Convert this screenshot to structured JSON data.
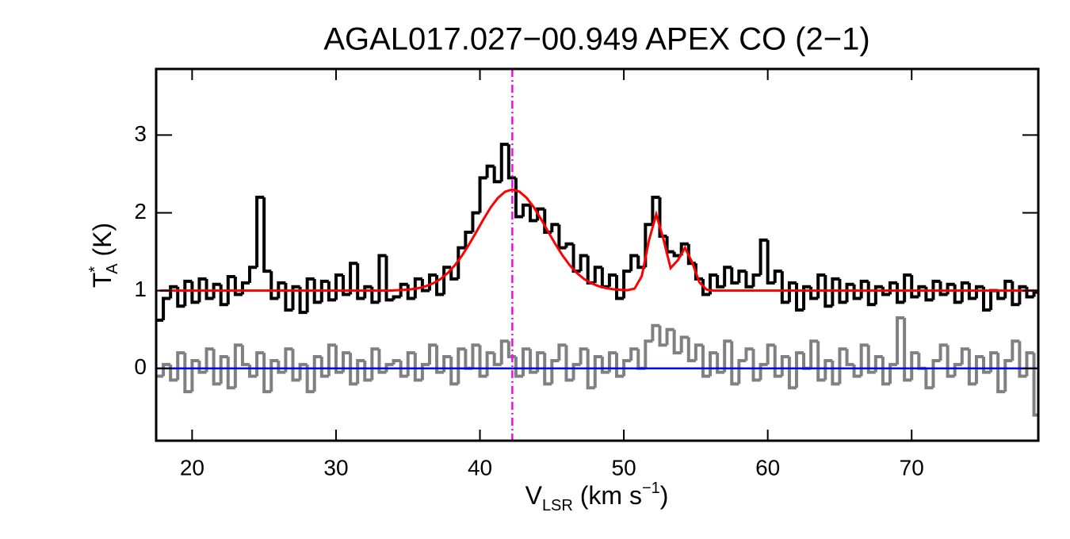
{
  "chart_data": {
    "type": "spectrum",
    "title": "AGAL017.027−00.949  APEX CO (2−1)",
    "xlabel": {
      "main": "V",
      "sub": "LSR",
      "rest": " (km s",
      "sup": "−1",
      "end": ")"
    },
    "ylabel": {
      "main": "T",
      "sup": "*",
      "sub": "A",
      "rest": " (K)"
    },
    "xlim": [
      17.5,
      78.8
    ],
    "ylim": [
      -0.93,
      3.85
    ],
    "xticks": [
      20,
      30,
      40,
      50,
      60,
      70
    ],
    "yticks": [
      0,
      1,
      2,
      3
    ],
    "x": [
      17.75,
      18.25,
      18.75,
      19.25,
      19.75,
      20.25,
      20.75,
      21.25,
      21.75,
      22.25,
      22.75,
      23.25,
      23.75,
      24.25,
      24.75,
      25.25,
      25.75,
      26.25,
      26.75,
      27.25,
      27.75,
      28.25,
      28.75,
      29.25,
      29.75,
      30.25,
      30.75,
      31.25,
      31.75,
      32.25,
      32.75,
      33.25,
      33.75,
      34.25,
      34.75,
      35.25,
      35.75,
      36.25,
      36.75,
      37.25,
      37.75,
      38.25,
      38.75,
      39.25,
      39.75,
      40.25,
      40.75,
      41.25,
      41.75,
      42.25,
      42.75,
      43.25,
      43.75,
      44.25,
      44.75,
      45.25,
      45.75,
      46.25,
      46.75,
      47.25,
      47.75,
      48.25,
      48.75,
      49.25,
      49.75,
      50.25,
      50.75,
      51.25,
      51.75,
      52.25,
      52.75,
      53.25,
      53.75,
      54.25,
      54.75,
      55.25,
      55.75,
      56.25,
      56.75,
      57.25,
      57.75,
      58.25,
      58.75,
      59.25,
      59.75,
      60.25,
      60.75,
      61.25,
      61.75,
      62.25,
      62.75,
      63.25,
      63.75,
      64.25,
      64.75,
      65.25,
      65.75,
      66.25,
      66.75,
      67.25,
      67.75,
      68.25,
      68.75,
      69.25,
      69.75,
      70.25,
      70.75,
      71.25,
      71.75,
      72.25,
      72.75,
      73.25,
      73.75,
      74.25,
      74.75,
      75.25,
      75.75,
      76.25,
      76.75,
      77.25,
      77.75,
      78.25,
      78.75
    ],
    "series": [
      {
        "style": "steps",
        "color": "#000000",
        "width": 4,
        "values": [
          0.62,
          0.9,
          1.05,
          0.8,
          1.12,
          0.85,
          1.15,
          0.9,
          1.08,
          0.82,
          1.18,
          0.95,
          1.1,
          1.3,
          2.2,
          1.25,
          0.9,
          1.1,
          0.75,
          1.05,
          0.72,
          1.15,
          0.85,
          1.12,
          0.88,
          1.2,
          0.95,
          1.35,
          0.9,
          1.05,
          0.85,
          1.45,
          0.88,
          0.92,
          1.08,
          0.9,
          1.15,
          1.0,
          1.2,
          0.95,
          1.3,
          1.15,
          1.55,
          1.75,
          2.0,
          2.45,
          2.6,
          2.4,
          2.88,
          2.45,
          1.95,
          2.1,
          1.9,
          2.05,
          1.75,
          1.85,
          1.55,
          1.6,
          1.25,
          1.45,
          1.1,
          1.3,
          1.05,
          1.2,
          0.9,
          1.25,
          1.45,
          1.3,
          1.85,
          2.2,
          1.7,
          1.5,
          1.45,
          1.6,
          1.35,
          1.15,
          0.95,
          1.2,
          1.05,
          1.3,
          1.1,
          1.25,
          1.05,
          1.2,
          1.65,
          1.1,
          1.25,
          0.85,
          1.1,
          0.75,
          1.05,
          0.9,
          1.2,
          0.8,
          1.15,
          0.85,
          1.08,
          0.9,
          1.12,
          0.82,
          1.05,
          0.95,
          1.1,
          0.85,
          1.2,
          0.92,
          1.05,
          0.88,
          1.12,
          0.95,
          1.08,
          0.85,
          1.1,
          0.9,
          1.05,
          0.75,
          1.0,
          0.9,
          1.12,
          0.82,
          1.05,
          0.92,
          0.98
        ]
      },
      {
        "style": "steps",
        "color": "#808080",
        "width": 4,
        "values": [
          -0.1,
          0.05,
          -0.15,
          0.2,
          -0.3,
          0.1,
          -0.05,
          0.25,
          -0.2,
          0.15,
          -0.25,
          0.3,
          0.05,
          -0.1,
          0.2,
          -0.3,
          0.1,
          -0.05,
          0.25,
          -0.15,
          0.05,
          -0.3,
          0.15,
          -0.1,
          0.3,
          -0.05,
          0.2,
          -0.2,
          0.1,
          -0.15,
          0.25,
          -0.05,
          0.05,
          0.1,
          -0.1,
          0.2,
          -0.15,
          0.05,
          0.3,
          -0.05,
          0.15,
          -0.2,
          0.25,
          0.0,
          0.3,
          -0.1,
          0.2,
          0.05,
          0.35,
          0.15,
          -0.1,
          0.25,
          -0.05,
          0.2,
          -0.2,
          0.1,
          0.3,
          -0.15,
          0.05,
          0.25,
          -0.25,
          0.15,
          -0.05,
          0.2,
          -0.1,
          0.1,
          0.25,
          0.0,
          0.35,
          0.55,
          0.3,
          0.5,
          0.2,
          0.4,
          0.1,
          0.3,
          -0.1,
          0.2,
          -0.05,
          0.35,
          -0.2,
          0.1,
          0.25,
          -0.15,
          0.05,
          0.3,
          -0.1,
          0.15,
          -0.25,
          0.2,
          0.0,
          0.35,
          -0.15,
          0.1,
          -0.2,
          0.25,
          0.05,
          -0.1,
          0.3,
          -0.05,
          0.15,
          -0.2,
          0.05,
          0.65,
          -0.15,
          0.2,
          0.0,
          -0.25,
          0.1,
          0.3,
          -0.1,
          0.05,
          0.25,
          -0.2,
          0.15,
          -0.05,
          0.2,
          -0.3,
          0.1,
          0.35,
          -0.1,
          0.2,
          -0.6
        ]
      },
      {
        "style": "line",
        "color": "#ff0000",
        "width": 3,
        "values": [
          1,
          1,
          1,
          1,
          1,
          1,
          1,
          1,
          1,
          1,
          1,
          1,
          1,
          1,
          1,
          1,
          1,
          1,
          1,
          1,
          1,
          1,
          1,
          1,
          1,
          1,
          1,
          1,
          1,
          1,
          1,
          1,
          1,
          1.005,
          1.01,
          1.018,
          1.033,
          1.057,
          1.094,
          1.148,
          1.224,
          1.324,
          1.449,
          1.595,
          1.755,
          1.919,
          2.07,
          2.192,
          2.272,
          2.3,
          2.272,
          2.192,
          2.07,
          1.919,
          1.755,
          1.595,
          1.449,
          1.324,
          1.224,
          1.148,
          1.094,
          1.057,
          1.033,
          1.018,
          1.01,
          1.005,
          1.026,
          1.188,
          1.649,
          1.98,
          1.662,
          1.29,
          1.39,
          1.55,
          1.364,
          1.106,
          1.013,
          1,
          1,
          1,
          1,
          1,
          1,
          1,
          1,
          1,
          1,
          1,
          1,
          1,
          1,
          1,
          1,
          1,
          1,
          1,
          1,
          1,
          1,
          1,
          1,
          1,
          1,
          1,
          1,
          1,
          1,
          1,
          1,
          1,
          1,
          1,
          1,
          1,
          1,
          1,
          1,
          1,
          1,
          1,
          1,
          1,
          1
        ]
      }
    ],
    "hlines": [
      {
        "value": 0,
        "color": "#0000ff"
      }
    ],
    "vlines": [
      {
        "value": 42.25,
        "color": "#ff00ff"
      }
    ]
  }
}
